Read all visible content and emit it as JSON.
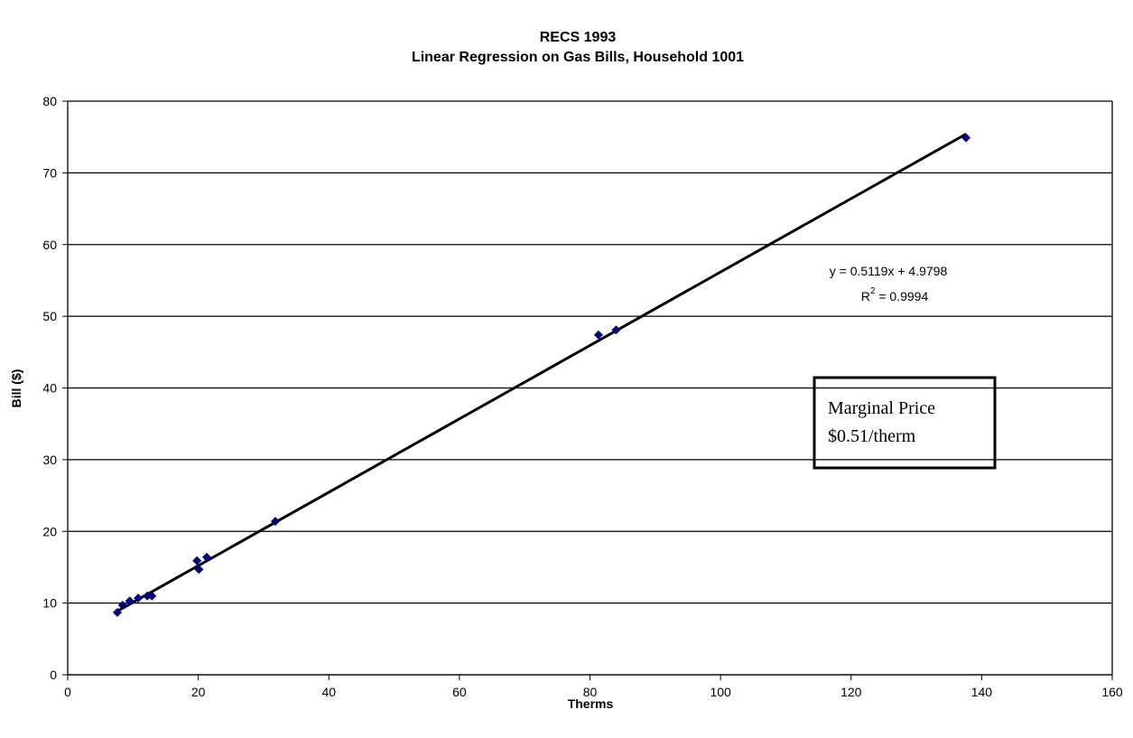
{
  "chart_data": {
    "type": "scatter",
    "title": [
      "RECS 1993",
      "Linear Regression on Gas Bills, Household 1001"
    ],
    "x_label": "Therms",
    "y_label": "Bill ($)",
    "x": [
      7.6,
      8.4,
      9.5,
      10.8,
      12.2,
      12.9,
      19.8,
      20.1,
      21.3,
      31.8,
      81.3,
      84.0,
      137.6
    ],
    "values": [
      8.7,
      9.7,
      10.3,
      10.7,
      11.0,
      11.0,
      15.9,
      14.7,
      16.4,
      21.4,
      47.4,
      48.1,
      74.9
    ],
    "color": "#000080",
    "xlim": [
      0,
      160
    ],
    "xticks": [
      0,
      20,
      40,
      60,
      80,
      100,
      120,
      140,
      160
    ],
    "ylim": [
      0,
      80
    ],
    "yticks": [
      0,
      10,
      20,
      30,
      40,
      50,
      60,
      70,
      80
    ],
    "grid": true,
    "trendline": {
      "slope": 0.5119,
      "intercept": 4.9798,
      "equation": "y = 0.5119x + 4.9798",
      "r_squared": [
        "R",
        "2",
        " = 0.9994"
      ]
    },
    "annotation": [
      "Marginal Price",
      "$0.51/therm"
    ]
  }
}
